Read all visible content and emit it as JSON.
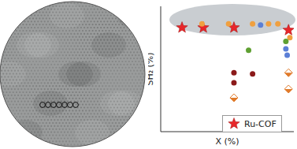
{
  "chart_data": {
    "type": "scatter",
    "x_label": "X (%)",
    "y_label": "SH₂ (%)",
    "xlim": [
      0,
      100
    ],
    "ylim": [
      0,
      100
    ],
    "tick_labels": false,
    "legend": "lower right",
    "series": [
      {
        "name": "Ru-COF",
        "color": "#e8262a",
        "marker": "star",
        "x": [
          16,
          32,
          55,
          96
        ],
        "values": [
          83,
          83,
          83,
          81
        ]
      },
      {
        "color": "#f0a040",
        "marker": "circle",
        "x": [
          31,
          51,
          69,
          81,
          88,
          97
        ],
        "values": [
          86,
          86,
          86,
          86,
          86,
          75
        ]
      },
      {
        "color": "#5b7fd6",
        "marker": "circle",
        "x": [
          75,
          94,
          95
        ],
        "values": [
          85,
          66,
          61
        ]
      },
      {
        "color": "#5fa032",
        "marker": "circle",
        "x": [
          66,
          94
        ],
        "values": [
          65,
          72
        ]
      },
      {
        "color": "#8b1a1a",
        "marker": "circle",
        "x": [
          55,
          55,
          69
        ],
        "values": [
          47,
          39,
          46
        ]
      },
      {
        "color": "#e07a2a",
        "marker": "half_diamond",
        "x": [
          55,
          96,
          96
        ],
        "values": [
          27,
          47,
          34
        ]
      }
    ]
  }
}
